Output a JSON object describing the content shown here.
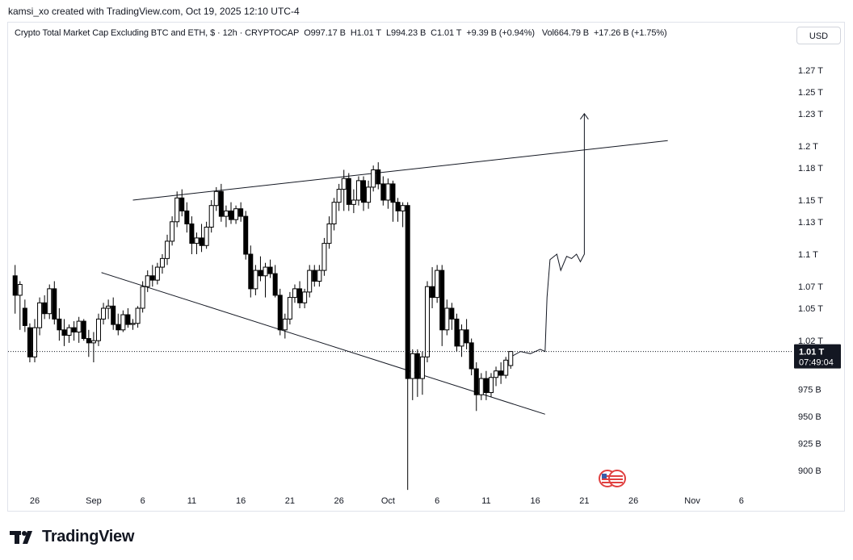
{
  "header": {
    "attribution": "kamsi_xo created with TradingView.com, Oct 19, 2025 12:10 UTC-4"
  },
  "legend": {
    "title": "Crypto Total Market Cap Excluding BTC and ETH, $ · 12h · CRYPTOCAP",
    "open": "O997.17 B",
    "high": "H1.01 T",
    "low": "L994.23 B",
    "close": "C1.01 T",
    "change": "+9.39 B (+0.94%)",
    "volume": "Vol664.79 B",
    "volume_change": "+17.26 B (+1.75%)"
  },
  "currency_button": "USD",
  "price_badge": {
    "price": "1.01 T",
    "countdown": "07:49:04"
  },
  "brand": "TradingView",
  "colors": {
    "candle": "#000000",
    "background": "#ffffff",
    "axis_text": "#131722",
    "badge": "#131722"
  },
  "chart_data": {
    "type": "candlestick",
    "unit": "USD (billions)",
    "y_axis_labels": [
      {
        "label": "1.27 T",
        "value": 1270
      },
      {
        "label": "1.25 T",
        "value": 1250
      },
      {
        "label": "1.23 T",
        "value": 1230
      },
      {
        "label": "1.2 T",
        "value": 1200
      },
      {
        "label": "1.18 T",
        "value": 1180
      },
      {
        "label": "1.15 T",
        "value": 1150
      },
      {
        "label": "1.13 T",
        "value": 1130
      },
      {
        "label": "1.1 T",
        "value": 1100
      },
      {
        "label": "1.07 T",
        "value": 1070
      },
      {
        "label": "1.05 T",
        "value": 1050
      },
      {
        "label": "1.02 T",
        "value": 1020
      },
      {
        "label": "975 B",
        "value": 975
      },
      {
        "label": "950 B",
        "value": 950
      },
      {
        "label": "925 B",
        "value": 925
      },
      {
        "label": "900 B",
        "value": 900
      }
    ],
    "x_axis_labels": [
      {
        "label": "26",
        "day": 0
      },
      {
        "label": "Sep",
        "day": 6
      },
      {
        "label": "6",
        "day": 11
      },
      {
        "label": "11",
        "day": 16
      },
      {
        "label": "16",
        "day": 21
      },
      {
        "label": "21",
        "day": 26
      },
      {
        "label": "26",
        "day": 31
      },
      {
        "label": "Oct",
        "day": 36
      },
      {
        "label": "6",
        "day": 41
      },
      {
        "label": "11",
        "day": 46
      },
      {
        "label": "16",
        "day": 51
      },
      {
        "label": "21",
        "day": 56
      },
      {
        "label": "26",
        "day": 61
      },
      {
        "label": "Nov",
        "day": 67
      },
      {
        "label": "6",
        "day": 72
      }
    ],
    "last_price": 1010,
    "candles": [
      {
        "day": -2.0,
        "o": 1080,
        "h": 1090,
        "l": 1045,
        "c": 1062
      },
      {
        "day": -1.5,
        "o": 1062,
        "h": 1075,
        "l": 1030,
        "c": 1072
      },
      {
        "day": -1.0,
        "o": 1050,
        "h": 1058,
        "l": 1028,
        "c": 1034
      },
      {
        "day": -0.5,
        "o": 1032,
        "h": 1036,
        "l": 1000,
        "c": 1005
      },
      {
        "day": 0.0,
        "o": 1005,
        "h": 1040,
        "l": 1000,
        "c": 1032
      },
      {
        "day": 0.5,
        "o": 1032,
        "h": 1060,
        "l": 1025,
        "c": 1055
      },
      {
        "day": 1.0,
        "o": 1055,
        "h": 1062,
        "l": 1040,
        "c": 1045
      },
      {
        "day": 1.5,
        "o": 1045,
        "h": 1072,
        "l": 1040,
        "c": 1068
      },
      {
        "day": 2.0,
        "o": 1068,
        "h": 1075,
        "l": 1035,
        "c": 1040
      },
      {
        "day": 2.5,
        "o": 1040,
        "h": 1050,
        "l": 1020,
        "c": 1030
      },
      {
        "day": 3.0,
        "o": 1030,
        "h": 1040,
        "l": 1015,
        "c": 1025
      },
      {
        "day": 3.5,
        "o": 1025,
        "h": 1035,
        "l": 1018,
        "c": 1032
      },
      {
        "day": 4.0,
        "o": 1032,
        "h": 1038,
        "l": 1020,
        "c": 1028
      },
      {
        "day": 4.5,
        "o": 1028,
        "h": 1042,
        "l": 1018,
        "c": 1038
      },
      {
        "day": 5.0,
        "o": 1038,
        "h": 1040,
        "l": 1020,
        "c": 1022
      },
      {
        "day": 5.5,
        "o": 1022,
        "h": 1030,
        "l": 1005,
        "c": 1018
      },
      {
        "day": 6.0,
        "o": 1018,
        "h": 1028,
        "l": 1000,
        "c": 1020
      },
      {
        "day": 6.5,
        "o": 1020,
        "h": 1045,
        "l": 1015,
        "c": 1040
      },
      {
        "day": 7.0,
        "o": 1040,
        "h": 1055,
        "l": 1035,
        "c": 1050
      },
      {
        "day": 7.5,
        "o": 1050,
        "h": 1058,
        "l": 1040,
        "c": 1052
      },
      {
        "day": 8.0,
        "o": 1052,
        "h": 1060,
        "l": 1030,
        "c": 1035
      },
      {
        "day": 8.5,
        "o": 1035,
        "h": 1045,
        "l": 1025,
        "c": 1030
      },
      {
        "day": 9.0,
        "o": 1030,
        "h": 1048,
        "l": 1028,
        "c": 1044
      },
      {
        "day": 9.5,
        "o": 1044,
        "h": 1050,
        "l": 1032,
        "c": 1035
      },
      {
        "day": 10.0,
        "o": 1035,
        "h": 1040,
        "l": 1030,
        "c": 1036
      },
      {
        "day": 10.5,
        "o": 1036,
        "h": 1052,
        "l": 1032,
        "c": 1050
      },
      {
        "day": 11.0,
        "o": 1050,
        "h": 1075,
        "l": 1046,
        "c": 1070
      },
      {
        "day": 11.5,
        "o": 1070,
        "h": 1085,
        "l": 1065,
        "c": 1080
      },
      {
        "day": 12.0,
        "o": 1080,
        "h": 1090,
        "l": 1070,
        "c": 1076
      },
      {
        "day": 12.5,
        "o": 1076,
        "h": 1092,
        "l": 1072,
        "c": 1088
      },
      {
        "day": 13.0,
        "o": 1088,
        "h": 1100,
        "l": 1082,
        "c": 1096
      },
      {
        "day": 13.5,
        "o": 1096,
        "h": 1118,
        "l": 1090,
        "c": 1112
      },
      {
        "day": 14.0,
        "o": 1112,
        "h": 1135,
        "l": 1108,
        "c": 1130
      },
      {
        "day": 14.5,
        "o": 1130,
        "h": 1158,
        "l": 1125,
        "c": 1152
      },
      {
        "day": 15.0,
        "o": 1152,
        "h": 1160,
        "l": 1135,
        "c": 1140
      },
      {
        "day": 15.5,
        "o": 1140,
        "h": 1148,
        "l": 1120,
        "c": 1128
      },
      {
        "day": 16.0,
        "o": 1128,
        "h": 1135,
        "l": 1100,
        "c": 1110
      },
      {
        "day": 16.5,
        "o": 1110,
        "h": 1120,
        "l": 1100,
        "c": 1115
      },
      {
        "day": 17.0,
        "o": 1115,
        "h": 1128,
        "l": 1102,
        "c": 1108
      },
      {
        "day": 17.5,
        "o": 1108,
        "h": 1130,
        "l": 1105,
        "c": 1125
      },
      {
        "day": 18.0,
        "o": 1125,
        "h": 1150,
        "l": 1120,
        "c": 1145
      },
      {
        "day": 18.5,
        "o": 1145,
        "h": 1162,
        "l": 1140,
        "c": 1158
      },
      {
        "day": 19.0,
        "o": 1158,
        "h": 1165,
        "l": 1130,
        "c": 1135
      },
      {
        "day": 19.5,
        "o": 1135,
        "h": 1145,
        "l": 1125,
        "c": 1140
      },
      {
        "day": 20.0,
        "o": 1140,
        "h": 1148,
        "l": 1128,
        "c": 1132
      },
      {
        "day": 20.5,
        "o": 1132,
        "h": 1145,
        "l": 1128,
        "c": 1142
      },
      {
        "day": 21.0,
        "o": 1142,
        "h": 1148,
        "l": 1130,
        "c": 1135
      },
      {
        "day": 21.5,
        "o": 1135,
        "h": 1140,
        "l": 1095,
        "c": 1100
      },
      {
        "day": 22.0,
        "o": 1100,
        "h": 1108,
        "l": 1060,
        "c": 1068
      },
      {
        "day": 22.5,
        "o": 1068,
        "h": 1090,
        "l": 1062,
        "c": 1085
      },
      {
        "day": 23.0,
        "o": 1085,
        "h": 1098,
        "l": 1075,
        "c": 1080
      },
      {
        "day": 23.5,
        "o": 1080,
        "h": 1092,
        "l": 1060,
        "c": 1088
      },
      {
        "day": 24.0,
        "o": 1088,
        "h": 1095,
        "l": 1078,
        "c": 1082
      },
      {
        "day": 24.5,
        "o": 1082,
        "h": 1090,
        "l": 1060,
        "c": 1062
      },
      {
        "day": 25.0,
        "o": 1062,
        "h": 1068,
        "l": 1025,
        "c": 1030
      },
      {
        "day": 25.5,
        "o": 1030,
        "h": 1045,
        "l": 1022,
        "c": 1040
      },
      {
        "day": 26.0,
        "o": 1040,
        "h": 1065,
        "l": 1035,
        "c": 1060
      },
      {
        "day": 26.5,
        "o": 1060,
        "h": 1072,
        "l": 1055,
        "c": 1068
      },
      {
        "day": 27.0,
        "o": 1068,
        "h": 1075,
        "l": 1050,
        "c": 1055
      },
      {
        "day": 27.5,
        "o": 1055,
        "h": 1068,
        "l": 1050,
        "c": 1065
      },
      {
        "day": 28.0,
        "o": 1065,
        "h": 1090,
        "l": 1060,
        "c": 1085
      },
      {
        "day": 28.5,
        "o": 1085,
        "h": 1090,
        "l": 1070,
        "c": 1075
      },
      {
        "day": 29.0,
        "o": 1075,
        "h": 1090,
        "l": 1070,
        "c": 1085
      },
      {
        "day": 29.5,
        "o": 1085,
        "h": 1115,
        "l": 1080,
        "c": 1110
      },
      {
        "day": 30.0,
        "o": 1110,
        "h": 1135,
        "l": 1105,
        "c": 1128
      },
      {
        "day": 30.5,
        "o": 1128,
        "h": 1152,
        "l": 1122,
        "c": 1148
      },
      {
        "day": 31.0,
        "o": 1148,
        "h": 1165,
        "l": 1140,
        "c": 1160
      },
      {
        "day": 31.5,
        "o": 1160,
        "h": 1178,
        "l": 1140,
        "c": 1170
      },
      {
        "day": 32.0,
        "o": 1170,
        "h": 1175,
        "l": 1140,
        "c": 1146
      },
      {
        "day": 32.5,
        "o": 1146,
        "h": 1160,
        "l": 1138,
        "c": 1150
      },
      {
        "day": 33.0,
        "o": 1150,
        "h": 1172,
        "l": 1145,
        "c": 1168
      },
      {
        "day": 33.5,
        "o": 1168,
        "h": 1172,
        "l": 1140,
        "c": 1148
      },
      {
        "day": 34.0,
        "o": 1148,
        "h": 1168,
        "l": 1142,
        "c": 1162
      },
      {
        "day": 34.5,
        "o": 1162,
        "h": 1182,
        "l": 1158,
        "c": 1178
      },
      {
        "day": 35.0,
        "o": 1178,
        "h": 1185,
        "l": 1160,
        "c": 1165
      },
      {
        "day": 35.5,
        "o": 1165,
        "h": 1172,
        "l": 1145,
        "c": 1150
      },
      {
        "day": 36.0,
        "o": 1150,
        "h": 1170,
        "l": 1142,
        "c": 1165
      },
      {
        "day": 36.5,
        "o": 1165,
        "h": 1168,
        "l": 1130,
        "c": 1148
      },
      {
        "day": 37.0,
        "o": 1148,
        "h": 1152,
        "l": 1130,
        "c": 1140
      },
      {
        "day": 37.5,
        "o": 1140,
        "h": 1148,
        "l": 1125,
        "c": 1145
      },
      {
        "day": 38.0,
        "o": 1145,
        "h": 1148,
        "l": 882,
        "c": 985
      },
      {
        "day": 38.5,
        "o": 985,
        "h": 1012,
        "l": 965,
        "c": 1008
      },
      {
        "day": 39.0,
        "o": 1008,
        "h": 1012,
        "l": 968,
        "c": 985
      },
      {
        "day": 39.5,
        "o": 985,
        "h": 1010,
        "l": 970,
        "c": 1005
      },
      {
        "day": 40.0,
        "o": 1005,
        "h": 1075,
        "l": 1000,
        "c": 1070
      },
      {
        "day": 40.5,
        "o": 1070,
        "h": 1088,
        "l": 1050,
        "c": 1060
      },
      {
        "day": 41.0,
        "o": 1060,
        "h": 1090,
        "l": 1055,
        "c": 1085
      },
      {
        "day": 41.5,
        "o": 1085,
        "h": 1090,
        "l": 1015,
        "c": 1030
      },
      {
        "day": 42.0,
        "o": 1030,
        "h": 1058,
        "l": 1025,
        "c": 1050
      },
      {
        "day": 42.5,
        "o": 1050,
        "h": 1055,
        "l": 1030,
        "c": 1040
      },
      {
        "day": 43.0,
        "o": 1040,
        "h": 1045,
        "l": 1010,
        "c": 1015
      },
      {
        "day": 43.5,
        "o": 1015,
        "h": 1035,
        "l": 1005,
        "c": 1030
      },
      {
        "day": 44.0,
        "o": 1030,
        "h": 1040,
        "l": 1012,
        "c": 1018
      },
      {
        "day": 44.5,
        "o": 1018,
        "h": 1022,
        "l": 988,
        "c": 994
      },
      {
        "day": 45.0,
        "o": 994,
        "h": 1000,
        "l": 955,
        "c": 970
      },
      {
        "day": 45.5,
        "o": 970,
        "h": 990,
        "l": 965,
        "c": 985
      },
      {
        "day": 46.0,
        "o": 985,
        "h": 992,
        "l": 965,
        "c": 972
      },
      {
        "day": 46.5,
        "o": 972,
        "h": 990,
        "l": 968,
        "c": 986
      },
      {
        "day": 47.0,
        "o": 986,
        "h": 996,
        "l": 978,
        "c": 992
      },
      {
        "day": 47.5,
        "o": 992,
        "h": 1000,
        "l": 980,
        "c": 988
      },
      {
        "day": 48.0,
        "o": 988,
        "h": 1005,
        "l": 985,
        "c": 1002
      },
      {
        "day": 48.5,
        "o": 997,
        "h": 1010,
        "l": 994,
        "c": 1010
      }
    ],
    "drawings": {
      "upper_trendline": {
        "from": {
          "day": 10.0,
          "price": 1150
        },
        "to": {
          "day": 64.5,
          "price": 1205
        }
      },
      "lower_trendline": {
        "from": {
          "day": 6.8,
          "price": 1083
        },
        "to": {
          "day": 52.0,
          "price": 952
        }
      },
      "projection_path": [
        {
          "day": 48.5,
          "price": 1005
        },
        {
          "day": 49.5,
          "price": 1010
        },
        {
          "day": 50.5,
          "price": 1008
        },
        {
          "day": 51.5,
          "price": 1012
        },
        {
          "day": 52.0,
          "price": 1010
        },
        {
          "day": 52.2,
          "price": 1060
        },
        {
          "day": 52.5,
          "price": 1095
        },
        {
          "day": 53.2,
          "price": 1100
        },
        {
          "day": 53.6,
          "price": 1085
        },
        {
          "day": 54.2,
          "price": 1098
        },
        {
          "day": 54.7,
          "price": 1096
        },
        {
          "day": 55.2,
          "price": 1100
        },
        {
          "day": 55.6,
          "price": 1093
        },
        {
          "day": 56.0,
          "price": 1100
        },
        {
          "day": 56.0,
          "price": 1230
        }
      ]
    }
  }
}
